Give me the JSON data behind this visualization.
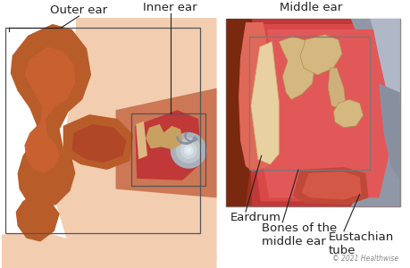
{
  "background_color": "#ffffff",
  "labels": {
    "outer_ear": "Outer ear",
    "inner_ear": "Inner ear",
    "middle_ear": "Middle ear",
    "eardrum": "Eardrum",
    "bones": "Bones of the\nmiddle ear",
    "eustachian": "Eustachian\ntube"
  },
  "copyright": "© 2021 Healthwise",
  "colors": {
    "ear_dark": "#b85c2a",
    "ear_mid": "#c96a35",
    "ear_light": "#e8a882",
    "skin_light": "#f2cdb0",
    "skin_lighter": "#f5dcc8",
    "canal_inner": "#d44a30",
    "bone_color": "#d4b896",
    "box_color": "#555555",
    "line_color": "#444444",
    "text_color": "#222222",
    "middle_ear_bg": "#c94040",
    "middle_ear_inner": "#e05555",
    "gray_bone": "#a0a8b0",
    "dark_brown": "#7a3515"
  }
}
